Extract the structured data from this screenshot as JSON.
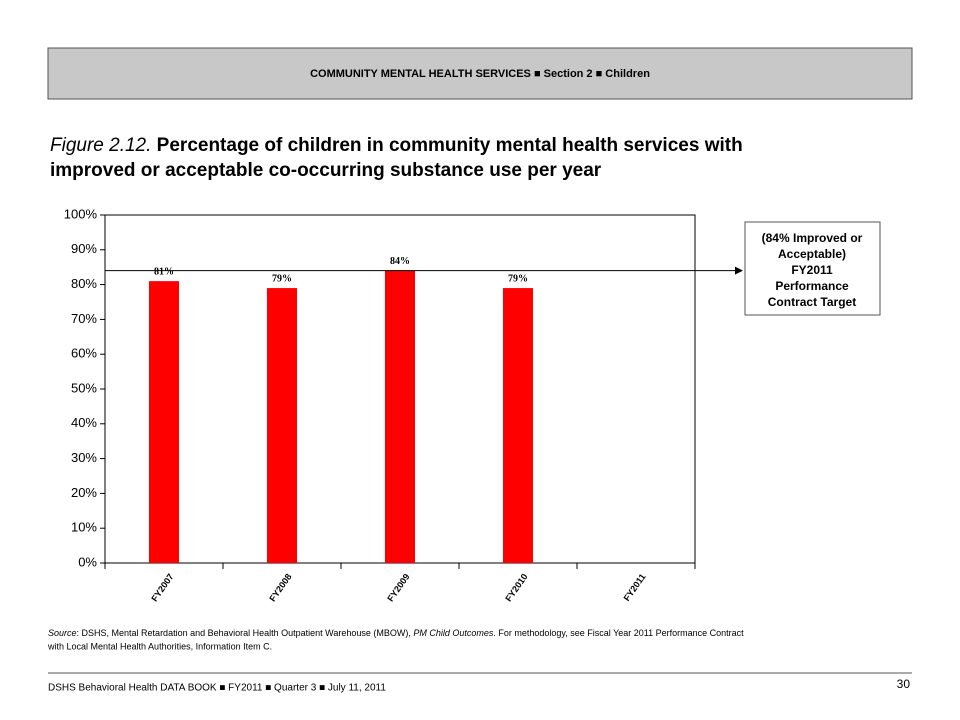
{
  "header": "COMMUNITY MENTAL HEALTH SERVICES ■ Section 2 ■ Children",
  "chart_data": {
    "type": "bar",
    "title": [
      "Figure 2.12.",
      " Percentage of children in community mental health services with",
      "improved or acceptable co-occurring substance use per year"
    ],
    "categories": [
      "FY2007",
      "FY2008",
      "FY2009",
      "FY2010",
      "FY2011"
    ],
    "values": [
      81,
      79,
      84,
      79,
      null
    ],
    "value_labels": [
      "81%",
      "79%",
      "84%",
      "79%",
      null
    ],
    "color": "#ff0000",
    "ylim": [
      0,
      100
    ],
    "yticks": [
      {
        "value": 0,
        "label": "0%"
      },
      {
        "value": 10,
        "label": "10%"
      },
      {
        "value": 20,
        "label": "20%"
      },
      {
        "value": 30,
        "label": "30%"
      },
      {
        "value": 40,
        "label": "40%"
      },
      {
        "value": 50,
        "label": "50%"
      },
      {
        "value": 60,
        "label": "60%"
      },
      {
        "value": 70,
        "label": "70%"
      },
      {
        "value": 80,
        "label": "80%"
      },
      {
        "value": 90,
        "label": "90%"
      },
      {
        "value": 100,
        "label": "100%"
      }
    ],
    "target": {
      "value": 84,
      "label": [
        "(84% Improved or",
        "Acceptable)",
        "FY2011",
        "Performance",
        "Contract Target"
      ]
    }
  },
  "source": [
    "Source",
    ": DSHS, Mental Retardation and Behavioral Health Outpatient Warehouse (MBOW), ",
    "PM Child Outcomes",
    ". For methodology, see Fiscal Year 2011 Performance Contract",
    "with Local Mental Health Authorities, Information Item C."
  ],
  "footer": "DSHS Behavioral Health DATA BOOK ■ FY2011 ■ Quarter 3 ■ July 11, 2011",
  "page_number": "30"
}
